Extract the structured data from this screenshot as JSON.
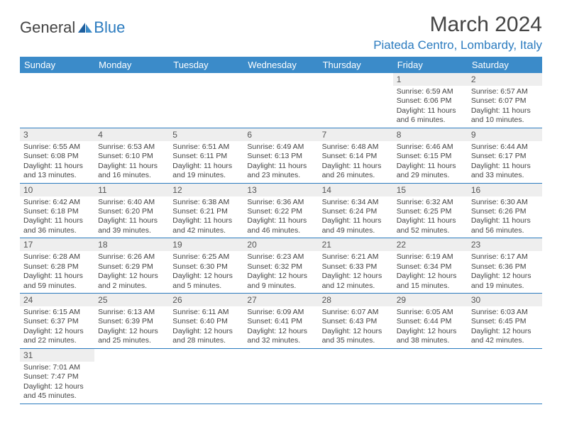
{
  "logo": {
    "general": "General",
    "blue": "Blue"
  },
  "title": "March 2024",
  "location": "Piateda Centro, Lombardy, Italy",
  "colors": {
    "header_bg": "#3b8bc9",
    "accent": "#2b7bbf",
    "daynum_bg": "#eeeeee",
    "text": "#444444"
  },
  "weekdays": [
    "Sunday",
    "Monday",
    "Tuesday",
    "Wednesday",
    "Thursday",
    "Friday",
    "Saturday"
  ],
  "weeks": [
    [
      {
        "n": "",
        "sr": "",
        "ss": "",
        "dl": ""
      },
      {
        "n": "",
        "sr": "",
        "ss": "",
        "dl": ""
      },
      {
        "n": "",
        "sr": "",
        "ss": "",
        "dl": ""
      },
      {
        "n": "",
        "sr": "",
        "ss": "",
        "dl": ""
      },
      {
        "n": "",
        "sr": "",
        "ss": "",
        "dl": ""
      },
      {
        "n": "1",
        "sr": "Sunrise: 6:59 AM",
        "ss": "Sunset: 6:06 PM",
        "dl": "Daylight: 11 hours and 6 minutes."
      },
      {
        "n": "2",
        "sr": "Sunrise: 6:57 AM",
        "ss": "Sunset: 6:07 PM",
        "dl": "Daylight: 11 hours and 10 minutes."
      }
    ],
    [
      {
        "n": "3",
        "sr": "Sunrise: 6:55 AM",
        "ss": "Sunset: 6:08 PM",
        "dl": "Daylight: 11 hours and 13 minutes."
      },
      {
        "n": "4",
        "sr": "Sunrise: 6:53 AM",
        "ss": "Sunset: 6:10 PM",
        "dl": "Daylight: 11 hours and 16 minutes."
      },
      {
        "n": "5",
        "sr": "Sunrise: 6:51 AM",
        "ss": "Sunset: 6:11 PM",
        "dl": "Daylight: 11 hours and 19 minutes."
      },
      {
        "n": "6",
        "sr": "Sunrise: 6:49 AM",
        "ss": "Sunset: 6:13 PM",
        "dl": "Daylight: 11 hours and 23 minutes."
      },
      {
        "n": "7",
        "sr": "Sunrise: 6:48 AM",
        "ss": "Sunset: 6:14 PM",
        "dl": "Daylight: 11 hours and 26 minutes."
      },
      {
        "n": "8",
        "sr": "Sunrise: 6:46 AM",
        "ss": "Sunset: 6:15 PM",
        "dl": "Daylight: 11 hours and 29 minutes."
      },
      {
        "n": "9",
        "sr": "Sunrise: 6:44 AM",
        "ss": "Sunset: 6:17 PM",
        "dl": "Daylight: 11 hours and 33 minutes."
      }
    ],
    [
      {
        "n": "10",
        "sr": "Sunrise: 6:42 AM",
        "ss": "Sunset: 6:18 PM",
        "dl": "Daylight: 11 hours and 36 minutes."
      },
      {
        "n": "11",
        "sr": "Sunrise: 6:40 AM",
        "ss": "Sunset: 6:20 PM",
        "dl": "Daylight: 11 hours and 39 minutes."
      },
      {
        "n": "12",
        "sr": "Sunrise: 6:38 AM",
        "ss": "Sunset: 6:21 PM",
        "dl": "Daylight: 11 hours and 42 minutes."
      },
      {
        "n": "13",
        "sr": "Sunrise: 6:36 AM",
        "ss": "Sunset: 6:22 PM",
        "dl": "Daylight: 11 hours and 46 minutes."
      },
      {
        "n": "14",
        "sr": "Sunrise: 6:34 AM",
        "ss": "Sunset: 6:24 PM",
        "dl": "Daylight: 11 hours and 49 minutes."
      },
      {
        "n": "15",
        "sr": "Sunrise: 6:32 AM",
        "ss": "Sunset: 6:25 PM",
        "dl": "Daylight: 11 hours and 52 minutes."
      },
      {
        "n": "16",
        "sr": "Sunrise: 6:30 AM",
        "ss": "Sunset: 6:26 PM",
        "dl": "Daylight: 11 hours and 56 minutes."
      }
    ],
    [
      {
        "n": "17",
        "sr": "Sunrise: 6:28 AM",
        "ss": "Sunset: 6:28 PM",
        "dl": "Daylight: 11 hours and 59 minutes."
      },
      {
        "n": "18",
        "sr": "Sunrise: 6:26 AM",
        "ss": "Sunset: 6:29 PM",
        "dl": "Daylight: 12 hours and 2 minutes."
      },
      {
        "n": "19",
        "sr": "Sunrise: 6:25 AM",
        "ss": "Sunset: 6:30 PM",
        "dl": "Daylight: 12 hours and 5 minutes."
      },
      {
        "n": "20",
        "sr": "Sunrise: 6:23 AM",
        "ss": "Sunset: 6:32 PM",
        "dl": "Daylight: 12 hours and 9 minutes."
      },
      {
        "n": "21",
        "sr": "Sunrise: 6:21 AM",
        "ss": "Sunset: 6:33 PM",
        "dl": "Daylight: 12 hours and 12 minutes."
      },
      {
        "n": "22",
        "sr": "Sunrise: 6:19 AM",
        "ss": "Sunset: 6:34 PM",
        "dl": "Daylight: 12 hours and 15 minutes."
      },
      {
        "n": "23",
        "sr": "Sunrise: 6:17 AM",
        "ss": "Sunset: 6:36 PM",
        "dl": "Daylight: 12 hours and 19 minutes."
      }
    ],
    [
      {
        "n": "24",
        "sr": "Sunrise: 6:15 AM",
        "ss": "Sunset: 6:37 PM",
        "dl": "Daylight: 12 hours and 22 minutes."
      },
      {
        "n": "25",
        "sr": "Sunrise: 6:13 AM",
        "ss": "Sunset: 6:39 PM",
        "dl": "Daylight: 12 hours and 25 minutes."
      },
      {
        "n": "26",
        "sr": "Sunrise: 6:11 AM",
        "ss": "Sunset: 6:40 PM",
        "dl": "Daylight: 12 hours and 28 minutes."
      },
      {
        "n": "27",
        "sr": "Sunrise: 6:09 AM",
        "ss": "Sunset: 6:41 PM",
        "dl": "Daylight: 12 hours and 32 minutes."
      },
      {
        "n": "28",
        "sr": "Sunrise: 6:07 AM",
        "ss": "Sunset: 6:43 PM",
        "dl": "Daylight: 12 hours and 35 minutes."
      },
      {
        "n": "29",
        "sr": "Sunrise: 6:05 AM",
        "ss": "Sunset: 6:44 PM",
        "dl": "Daylight: 12 hours and 38 minutes."
      },
      {
        "n": "30",
        "sr": "Sunrise: 6:03 AM",
        "ss": "Sunset: 6:45 PM",
        "dl": "Daylight: 12 hours and 42 minutes."
      }
    ],
    [
      {
        "n": "31",
        "sr": "Sunrise: 7:01 AM",
        "ss": "Sunset: 7:47 PM",
        "dl": "Daylight: 12 hours and 45 minutes."
      },
      {
        "n": "",
        "sr": "",
        "ss": "",
        "dl": ""
      },
      {
        "n": "",
        "sr": "",
        "ss": "",
        "dl": ""
      },
      {
        "n": "",
        "sr": "",
        "ss": "",
        "dl": ""
      },
      {
        "n": "",
        "sr": "",
        "ss": "",
        "dl": ""
      },
      {
        "n": "",
        "sr": "",
        "ss": "",
        "dl": ""
      },
      {
        "n": "",
        "sr": "",
        "ss": "",
        "dl": ""
      }
    ]
  ]
}
